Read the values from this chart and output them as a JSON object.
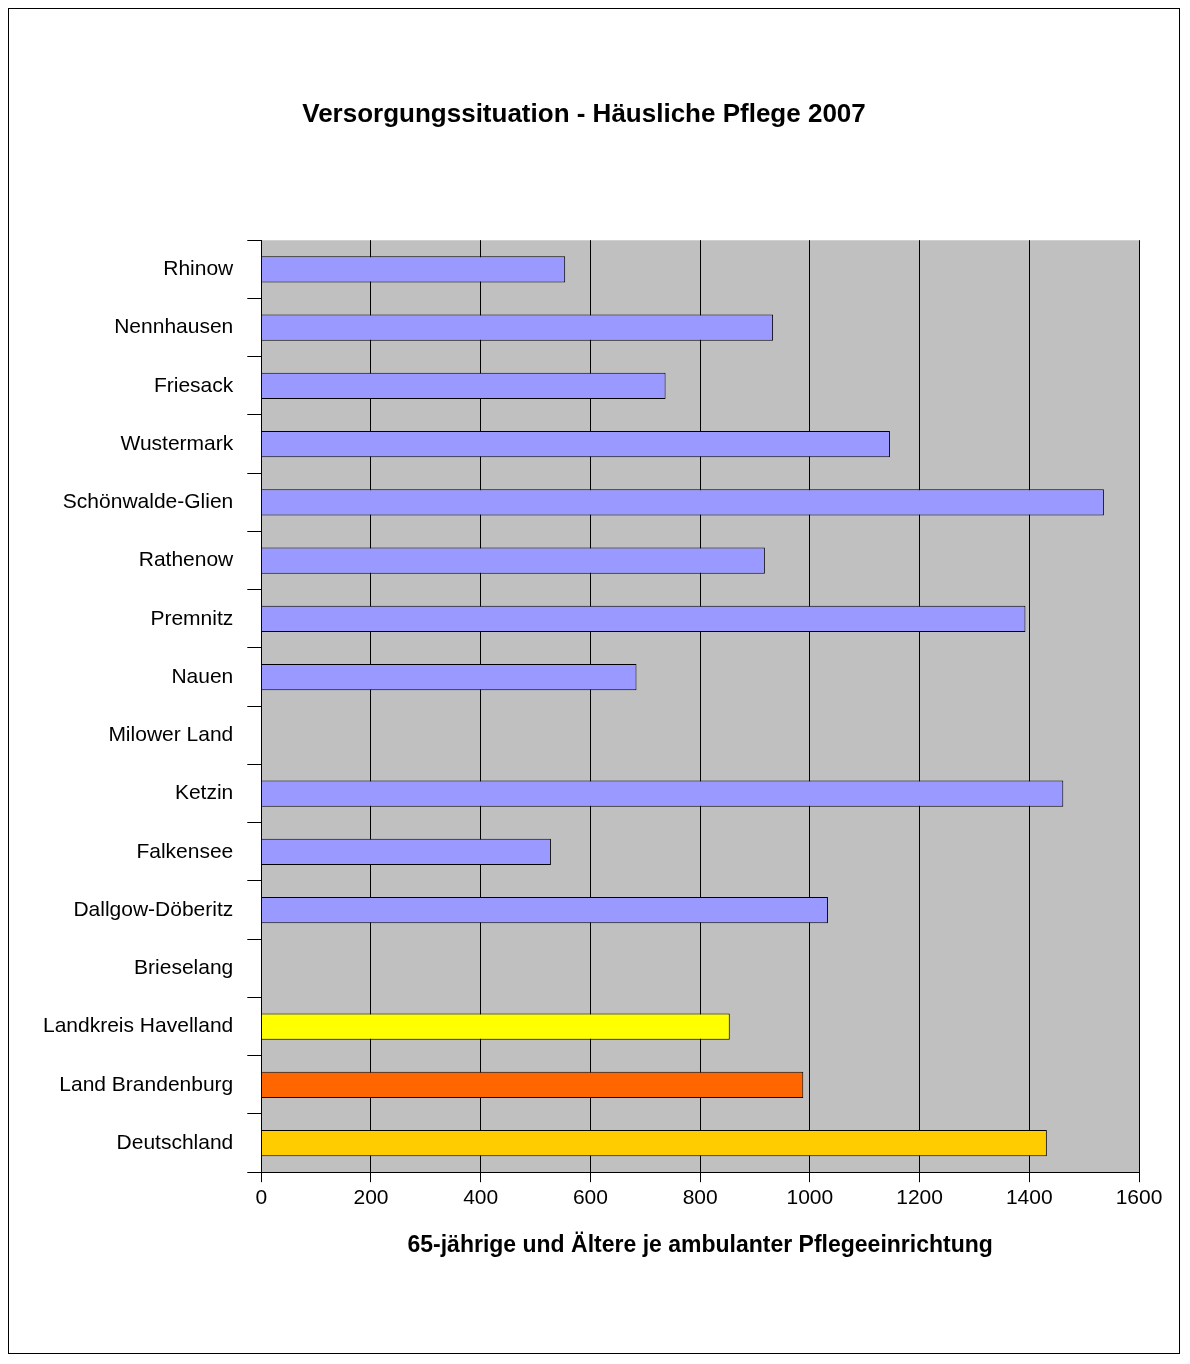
{
  "chart_data": {
    "type": "bar",
    "orientation": "horizontal",
    "title": "Versorgungssituation - Häusliche Pflege 2007",
    "xlabel": "65-jährige und Ältere je ambulanter Pflegeeinrichtung",
    "categories": [
      "Rhinow",
      "Nennhausen",
      "Friesack",
      "Wustermark",
      "Schönwalde-Glien",
      "Rathenow",
      "Premnitz",
      "Nauen",
      "Milower Land",
      "Ketzin",
      "Falkensee",
      "Dallgow-Döberitz",
      "Brieselang",
      "Landkreis Havelland",
      "Land Brandenburg",
      "Deutschland"
    ],
    "values": [
      554,
      933,
      737,
      1146,
      1536,
      918,
      1393,
      684,
      0,
      1462,
      528,
      1033,
      0,
      854,
      988,
      1432
    ],
    "colors": [
      "#9999ff",
      "#9999ff",
      "#9999ff",
      "#9999ff",
      "#9999ff",
      "#9999ff",
      "#9999ff",
      "#9999ff",
      "#9999ff",
      "#9999ff",
      "#9999ff",
      "#9999ff",
      "#9999ff",
      "#ffff00",
      "#ff6600",
      "#ffcc00"
    ],
    "xlim": [
      0,
      1600
    ],
    "xticks": [
      0,
      200,
      400,
      600,
      800,
      1000,
      1200,
      1400,
      1600
    ],
    "grid": "x",
    "legend": false
  }
}
